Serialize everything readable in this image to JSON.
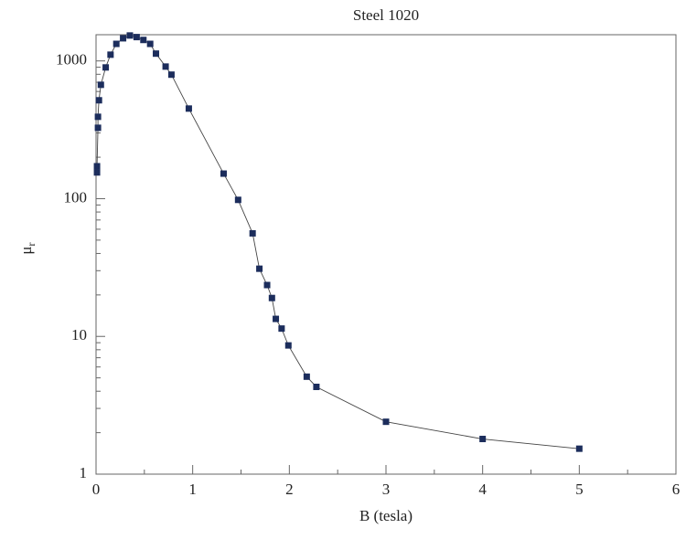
{
  "chart_data": {
    "type": "line",
    "title": "Steel 1020",
    "xlabel": "B (tesla)",
    "ylabel": {
      "symbol": "μ",
      "subscript": "r"
    },
    "log_y": true,
    "xlim": [
      0,
      6
    ],
    "xticks": [
      0,
      1,
      2,
      3,
      4,
      5,
      6
    ],
    "ylim": [
      1,
      1550
    ],
    "yticks": [
      1,
      10,
      100,
      1000
    ],
    "series": [
      {
        "color": "#1c2d5c",
        "x": [
          0.01,
          0.01,
          0.02,
          0.02,
          0.03,
          0.05,
          0.1,
          0.15,
          0.21,
          0.28,
          0.35,
          0.42,
          0.49,
          0.56,
          0.62,
          0.72,
          0.78,
          0.96,
          1.32,
          1.47,
          1.62,
          1.69,
          1.77,
          1.82,
          1.86,
          1.92,
          1.99,
          2.18,
          2.28,
          3.0,
          4.0,
          5.0
        ],
        "values": [
          155,
          172,
          327,
          393,
          518,
          671,
          897,
          1110,
          1330,
          1460,
          1530,
          1490,
          1420,
          1330,
          1130,
          910,
          795,
          451,
          152,
          98,
          56,
          31,
          23.6,
          19,
          13.4,
          11.4,
          8.6,
          5.1,
          4.3,
          2.4,
          1.8,
          1.53
        ]
      }
    ]
  }
}
